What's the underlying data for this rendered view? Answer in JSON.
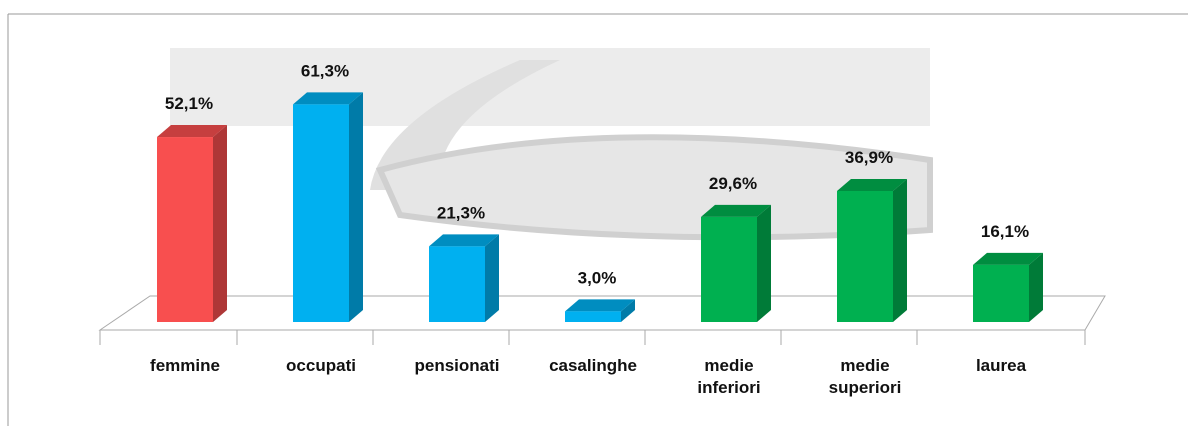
{
  "chart_data": {
    "type": "bar3d",
    "categories": [
      "femmine",
      "occupati",
      "pensionati",
      "casalinghe",
      "medie inferiori",
      "medie superiori",
      "laurea"
    ],
    "values": [
      52.1,
      61.3,
      21.3,
      3.0,
      29.6,
      36.9,
      16.1
    ],
    "value_labels": [
      "52,1%",
      "61,3%",
      "21,3%",
      "3,0%",
      "29,6%",
      "36,9%",
      "16,1%"
    ],
    "colors": [
      "#f84f4f",
      "#00b0f0",
      "#00b0f0",
      "#00b0f0",
      "#00b050",
      "#00b050",
      "#00b050"
    ]
  }
}
